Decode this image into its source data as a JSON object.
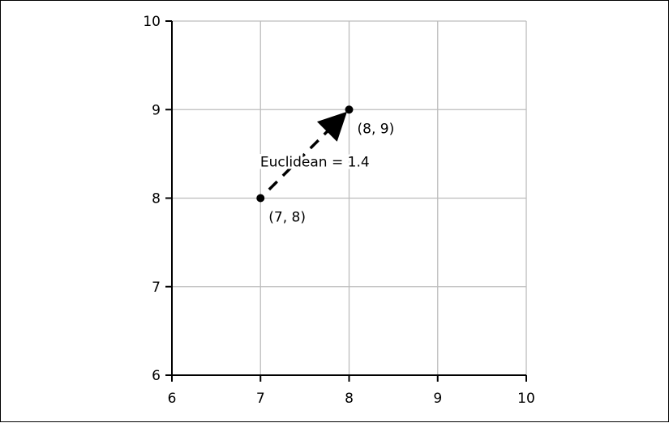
{
  "chart_data": {
    "type": "scatter",
    "title": "",
    "xlabel": "",
    "ylabel": "",
    "xlim": [
      6,
      10
    ],
    "ylim": [
      6,
      10
    ],
    "grid": true,
    "x_ticks": [
      6,
      7,
      8,
      9,
      10
    ],
    "y_ticks": [
      6,
      7,
      8,
      9,
      10
    ],
    "x_tick_labels": [
      "6",
      "7",
      "8",
      "9",
      "10"
    ],
    "y_tick_labels": [
      "6",
      "7",
      "8",
      "9",
      "10"
    ],
    "points": [
      {
        "x": 7,
        "y": 8,
        "label": "(7, 8)"
      },
      {
        "x": 8,
        "y": 9,
        "label": "(8, 9)"
      }
    ],
    "annotations": [
      {
        "text": "Euclidean = 1.4",
        "arrow_from": {
          "x": 7,
          "y": 8
        },
        "arrow_to": {
          "x": 8,
          "y": 9
        }
      }
    ],
    "colors": {
      "axis": "#000000",
      "grid": "#bdbdbd",
      "points": "#000000",
      "arrow": "#000000"
    }
  }
}
